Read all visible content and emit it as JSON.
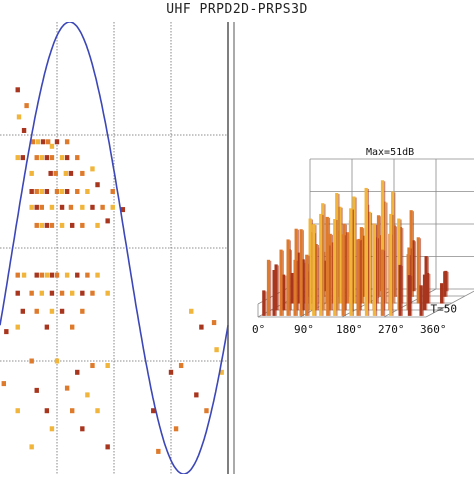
{
  "title": "UHF PRPD2D-PRPS3D",
  "colors": {
    "sine": "#3c47b8",
    "grid": "#6a6a6a",
    "frame": "#555555",
    "box": "#8a8a8a",
    "bar_light": "#f0b53a",
    "bar_mid": "#de7a2c",
    "bar_dark": "#a8361e"
  },
  "chart_data": [
    {
      "type": "scatter",
      "panel": "PRPD2D",
      "title": "",
      "xlabel": "",
      "ylabel": "",
      "grid": true,
      "reference_curve": "sine",
      "series": [
        {
          "name": "",
          "points": [
            {
              "x": 8,
              "y": 70
            },
            {
              "x": 22,
              "y": 63
            },
            {
              "x": 10,
              "y": 58
            },
            {
              "x": 18,
              "y": 52
            },
            {
              "x": 32,
              "y": 47
            },
            {
              "x": 40,
              "y": 47
            },
            {
              "x": 48,
              "y": 47
            },
            {
              "x": 56,
              "y": 47
            },
            {
              "x": 62,
              "y": 45
            },
            {
              "x": 70,
              "y": 47
            },
            {
              "x": 86,
              "y": 47
            },
            {
              "x": 8,
              "y": 40
            },
            {
              "x": 16,
              "y": 40
            },
            {
              "x": 38,
              "y": 40
            },
            {
              "x": 46,
              "y": 40
            },
            {
              "x": 54,
              "y": 40
            },
            {
              "x": 62,
              "y": 40
            },
            {
              "x": 78,
              "y": 40
            },
            {
              "x": 86,
              "y": 40
            },
            {
              "x": 102,
              "y": 40
            },
            {
              "x": 30,
              "y": 33
            },
            {
              "x": 60,
              "y": 33
            },
            {
              "x": 68,
              "y": 33
            },
            {
              "x": 84,
              "y": 33
            },
            {
              "x": 92,
              "y": 33
            },
            {
              "x": 110,
              "y": 33
            },
            {
              "x": 126,
              "y": 35
            },
            {
              "x": 30,
              "y": 25
            },
            {
              "x": 38,
              "y": 25
            },
            {
              "x": 46,
              "y": 25
            },
            {
              "x": 54,
              "y": 25
            },
            {
              "x": 70,
              "y": 25
            },
            {
              "x": 78,
              "y": 25
            },
            {
              "x": 86,
              "y": 25
            },
            {
              "x": 102,
              "y": 25
            },
            {
              "x": 118,
              "y": 25
            },
            {
              "x": 134,
              "y": 28
            },
            {
              "x": 158,
              "y": 25
            },
            {
              "x": 30,
              "y": 18
            },
            {
              "x": 38,
              "y": 18
            },
            {
              "x": 46,
              "y": 18
            },
            {
              "x": 62,
              "y": 18
            },
            {
              "x": 78,
              "y": 18
            },
            {
              "x": 92,
              "y": 18
            },
            {
              "x": 110,
              "y": 18
            },
            {
              "x": 126,
              "y": 18
            },
            {
              "x": 142,
              "y": 18
            },
            {
              "x": 158,
              "y": 18
            },
            {
              "x": 174,
              "y": 17
            },
            {
              "x": 38,
              "y": 10
            },
            {
              "x": 46,
              "y": 10
            },
            {
              "x": 54,
              "y": 10
            },
            {
              "x": 62,
              "y": 10
            },
            {
              "x": 78,
              "y": 10
            },
            {
              "x": 94,
              "y": 10
            },
            {
              "x": 110,
              "y": 10
            },
            {
              "x": 134,
              "y": 10
            },
            {
              "x": 150,
              "y": 12
            },
            {
              "x": 8,
              "y": -12
            },
            {
              "x": 18,
              "y": -12
            },
            {
              "x": 38,
              "y": -12
            },
            {
              "x": 46,
              "y": -12
            },
            {
              "x": 54,
              "y": -12
            },
            {
              "x": 62,
              "y": -12
            },
            {
              "x": 70,
              "y": -12
            },
            {
              "x": 86,
              "y": -12
            },
            {
              "x": 102,
              "y": -12
            },
            {
              "x": 118,
              "y": -12
            },
            {
              "x": 134,
              "y": -12
            },
            {
              "x": 8,
              "y": -20
            },
            {
              "x": 30,
              "y": -20
            },
            {
              "x": 46,
              "y": -20
            },
            {
              "x": 62,
              "y": -20
            },
            {
              "x": 78,
              "y": -20
            },
            {
              "x": 94,
              "y": -20
            },
            {
              "x": 110,
              "y": -20
            },
            {
              "x": 126,
              "y": -20
            },
            {
              "x": 150,
              "y": -20
            },
            {
              "x": 16,
              "y": -28
            },
            {
              "x": 38,
              "y": -28
            },
            {
              "x": 62,
              "y": -28
            },
            {
              "x": 78,
              "y": -28
            },
            {
              "x": 110,
              "y": -28
            },
            {
              "x": 8,
              "y": -35
            },
            {
              "x": 54,
              "y": -35
            },
            {
              "x": 94,
              "y": -35
            },
            {
              "x": 282,
              "y": -28
            },
            {
              "x": 298,
              "y": -35
            },
            {
              "x": 318,
              "y": -33
            },
            {
              "x": 322,
              "y": -45
            },
            {
              "x": 350,
              "y": -37
            },
            {
              "x": 30,
              "y": -50
            },
            {
              "x": 70,
              "y": -50
            },
            {
              "x": 102,
              "y": -55
            },
            {
              "x": 126,
              "y": -52
            },
            {
              "x": 150,
              "y": -52
            },
            {
              "x": 250,
              "y": -55
            },
            {
              "x": 266,
              "y": -52
            },
            {
              "x": 330,
              "y": -55
            },
            {
              "x": 38,
              "y": -63
            },
            {
              "x": 86,
              "y": -62
            },
            {
              "x": 118,
              "y": -65
            },
            {
              "x": 290,
              "y": -65
            },
            {
              "x": 346,
              "y": -60
            },
            {
              "x": 8,
              "y": -72
            },
            {
              "x": 54,
              "y": -72
            },
            {
              "x": 94,
              "y": -72
            },
            {
              "x": 134,
              "y": -72
            },
            {
              "x": 222,
              "y": -72
            },
            {
              "x": 306,
              "y": -72
            },
            {
              "x": 62,
              "y": -80
            },
            {
              "x": 110,
              "y": -80
            },
            {
              "x": 258,
              "y": -80
            },
            {
              "x": 30,
              "y": -88
            },
            {
              "x": 150,
              "y": -88
            },
            {
              "x": 230,
              "y": -90
            }
          ]
        }
      ]
    },
    {
      "type": "bar",
      "panel": "PRPS3D",
      "title": "Max=51dB",
      "xlabel": "",
      "ylabel": "",
      "x_ticks": [
        "0°",
        "90°",
        "180°",
        "270°",
        "360°"
      ],
      "period_label": "T=50",
      "zmax_db": 51,
      "bars": [
        {
          "phase": 8,
          "cycle": 2,
          "value": 10
        },
        {
          "phase": 18,
          "cycle": 2,
          "value": 22
        },
        {
          "phase": 30,
          "cycle": 2,
          "value": 18
        },
        {
          "phase": 45,
          "cycle": 2,
          "value": 26
        },
        {
          "phase": 60,
          "cycle": 2,
          "value": 30
        },
        {
          "phase": 75,
          "cycle": 2,
          "value": 22
        },
        {
          "phase": 88,
          "cycle": 2,
          "value": 34
        },
        {
          "phase": 100,
          "cycle": 2,
          "value": 24
        },
        {
          "phase": 115,
          "cycle": 2,
          "value": 36
        },
        {
          "phase": 130,
          "cycle": 2,
          "value": 40
        },
        {
          "phase": 145,
          "cycle": 2,
          "value": 28
        },
        {
          "phase": 160,
          "cycle": 2,
          "value": 38
        },
        {
          "phase": 178,
          "cycle": 2,
          "value": 32
        },
        {
          "phase": 195,
          "cycle": 2,
          "value": 42
        },
        {
          "phase": 210,
          "cycle": 2,
          "value": 30
        },
        {
          "phase": 228,
          "cycle": 2,
          "value": 44
        },
        {
          "phase": 245,
          "cycle": 2,
          "value": 36
        },
        {
          "phase": 262,
          "cycle": 2,
          "value": 26
        },
        {
          "phase": 280,
          "cycle": 2,
          "value": 40
        },
        {
          "phase": 300,
          "cycle": 2,
          "value": 20
        },
        {
          "phase": 320,
          "cycle": 2,
          "value": 16
        },
        {
          "phase": 345,
          "cycle": 2,
          "value": 12
        },
        {
          "phase": 12,
          "cycle": 12,
          "value": 18
        },
        {
          "phase": 28,
          "cycle": 12,
          "value": 14
        },
        {
          "phase": 40,
          "cycle": 12,
          "value": 24
        },
        {
          "phase": 55,
          "cycle": 12,
          "value": 32
        },
        {
          "phase": 70,
          "cycle": 12,
          "value": 20
        },
        {
          "phase": 85,
          "cycle": 12,
          "value": 36
        },
        {
          "phase": 98,
          "cycle": 12,
          "value": 26
        },
        {
          "phase": 112,
          "cycle": 12,
          "value": 42
        },
        {
          "phase": 128,
          "cycle": 12,
          "value": 30
        },
        {
          "phase": 142,
          "cycle": 12,
          "value": 46
        },
        {
          "phase": 158,
          "cycle": 12,
          "value": 34
        },
        {
          "phase": 172,
          "cycle": 12,
          "value": 40
        },
        {
          "phase": 190,
          "cycle": 12,
          "value": 28
        },
        {
          "phase": 205,
          "cycle": 12,
          "value": 48
        },
        {
          "phase": 222,
          "cycle": 12,
          "value": 34
        },
        {
          "phase": 240,
          "cycle": 12,
          "value": 51
        },
        {
          "phase": 256,
          "cycle": 12,
          "value": 30
        },
        {
          "phase": 275,
          "cycle": 12,
          "value": 36
        },
        {
          "phase": 295,
          "cycle": 12,
          "value": 22
        },
        {
          "phase": 330,
          "cycle": 12,
          "value": 14
        },
        {
          "phase": 20,
          "cycle": 24,
          "value": 12
        },
        {
          "phase": 35,
          "cycle": 24,
          "value": 20
        },
        {
          "phase": 50,
          "cycle": 24,
          "value": 16
        },
        {
          "phase": 65,
          "cycle": 24,
          "value": 28
        },
        {
          "phase": 80,
          "cycle": 24,
          "value": 22
        },
        {
          "phase": 95,
          "cycle": 24,
          "value": 34
        },
        {
          "phase": 108,
          "cycle": 24,
          "value": 24
        },
        {
          "phase": 122,
          "cycle": 24,
          "value": 38
        },
        {
          "phase": 138,
          "cycle": 24,
          "value": 28
        },
        {
          "phase": 152,
          "cycle": 24,
          "value": 42
        },
        {
          "phase": 168,
          "cycle": 24,
          "value": 30
        },
        {
          "phase": 185,
          "cycle": 24,
          "value": 36
        },
        {
          "phase": 200,
          "cycle": 24,
          "value": 26
        },
        {
          "phase": 218,
          "cycle": 24,
          "value": 40
        },
        {
          "phase": 235,
          "cycle": 24,
          "value": 44
        },
        {
          "phase": 252,
          "cycle": 24,
          "value": 30
        },
        {
          "phase": 270,
          "cycle": 24,
          "value": 22
        },
        {
          "phase": 290,
          "cycle": 24,
          "value": 26
        },
        {
          "phase": 310,
          "cycle": 24,
          "value": 12
        },
        {
          "phase": 340,
          "cycle": 24,
          "value": 8
        },
        {
          "phase": 25,
          "cycle": 36,
          "value": 10
        },
        {
          "phase": 58,
          "cycle": 36,
          "value": 18
        },
        {
          "phase": 90,
          "cycle": 36,
          "value": 26
        },
        {
          "phase": 118,
          "cycle": 36,
          "value": 30
        },
        {
          "phase": 148,
          "cycle": 36,
          "value": 24
        },
        {
          "phase": 178,
          "cycle": 36,
          "value": 32
        },
        {
          "phase": 212,
          "cycle": 36,
          "value": 28
        },
        {
          "phase": 248,
          "cycle": 36,
          "value": 34
        },
        {
          "phase": 280,
          "cycle": 36,
          "value": 16
        },
        {
          "phase": 320,
          "cycle": 36,
          "value": 10
        },
        {
          "phase": 40,
          "cycle": 46,
          "value": 12
        },
        {
          "phase": 100,
          "cycle": 46,
          "value": 18
        },
        {
          "phase": 160,
          "cycle": 46,
          "value": 22
        },
        {
          "phase": 230,
          "cycle": 46,
          "value": 20
        },
        {
          "phase": 300,
          "cycle": 46,
          "value": 8
        }
      ]
    }
  ]
}
